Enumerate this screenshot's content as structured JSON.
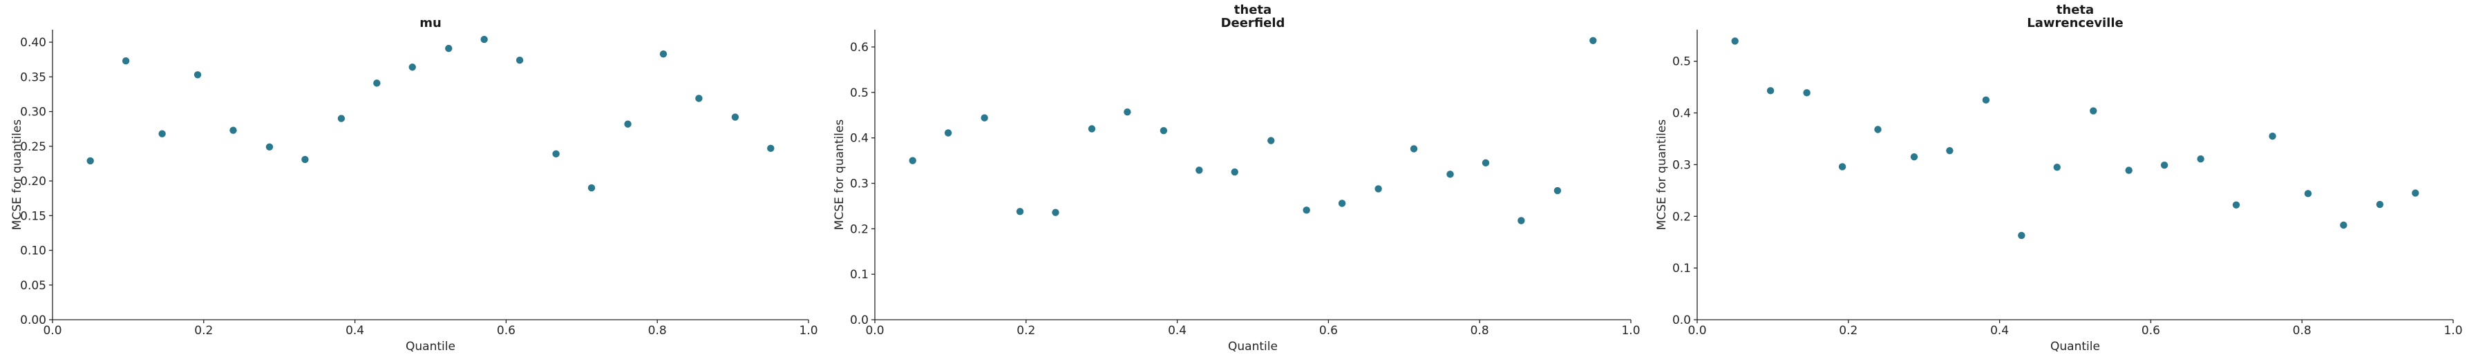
{
  "figure": {
    "background": "#ffffff",
    "colors": {
      "points": "#2a788e",
      "axis": "#262626",
      "tick_labels": "#262626",
      "axis_labels": "#262626",
      "title": "#1a1a1a"
    }
  },
  "chart_data": [
    {
      "type": "scatter",
      "title": "mu",
      "xlabel": "Quantile",
      "ylabel": "MCSE for quantiles",
      "x": [
        0.05,
        0.097,
        0.145,
        0.192,
        0.239,
        0.287,
        0.334,
        0.382,
        0.429,
        0.476,
        0.524,
        0.571,
        0.618,
        0.666,
        0.713,
        0.761,
        0.808,
        0.855,
        0.903,
        0.95
      ],
      "y": [
        0.229,
        0.373,
        0.268,
        0.353,
        0.273,
        0.249,
        0.231,
        0.29,
        0.341,
        0.364,
        0.391,
        0.404,
        0.374,
        0.239,
        0.19,
        0.282,
        0.383,
        0.319,
        0.292,
        0.247
      ],
      "xlim": [
        0,
        1
      ],
      "ylim": [
        0,
        0.418
      ],
      "grid": false,
      "legend": null,
      "xticks": {
        "values": [
          0.0,
          0.2,
          0.4,
          0.6,
          0.8,
          1.0
        ],
        "labels": [
          "0.0",
          "0.2",
          "0.4",
          "0.6",
          "0.8",
          "1.0"
        ]
      },
      "yticks": {
        "values": [
          0.0,
          0.05,
          0.1,
          0.15,
          0.2,
          0.25,
          0.3,
          0.35,
          0.4
        ],
        "labels": [
          "0.00",
          "0.05",
          "0.10",
          "0.15",
          "0.20",
          "0.25",
          "0.30",
          "0.35",
          "0.40"
        ]
      }
    },
    {
      "type": "scatter",
      "title": "theta\nDeerfield",
      "xlabel": "Quantile",
      "ylabel": "MCSE for quantiles",
      "x": [
        0.05,
        0.097,
        0.145,
        0.192,
        0.239,
        0.287,
        0.334,
        0.382,
        0.429,
        0.476,
        0.524,
        0.571,
        0.618,
        0.666,
        0.713,
        0.761,
        0.808,
        0.855,
        0.903,
        0.95
      ],
      "y": [
        0.35,
        0.411,
        0.444,
        0.238,
        0.236,
        0.42,
        0.457,
        0.416,
        0.329,
        0.325,
        0.394,
        0.241,
        0.256,
        0.288,
        0.376,
        0.32,
        0.345,
        0.218,
        0.284,
        0.614
      ],
      "xlim": [
        0,
        1
      ],
      "ylim": [
        0,
        0.638
      ],
      "grid": false,
      "legend": null,
      "xticks": {
        "values": [
          0.0,
          0.2,
          0.4,
          0.6,
          0.8,
          1.0
        ],
        "labels": [
          "0.0",
          "0.2",
          "0.4",
          "0.6",
          "0.8",
          "1.0"
        ]
      },
      "yticks": {
        "values": [
          0.0,
          0.1,
          0.2,
          0.3,
          0.4,
          0.5,
          0.6
        ],
        "labels": [
          "0.0",
          "0.1",
          "0.2",
          "0.3",
          "0.4",
          "0.5",
          "0.6"
        ]
      }
    },
    {
      "type": "scatter",
      "title": "theta\nLawrenceville",
      "xlabel": "Quantile",
      "ylabel": "MCSE for quantiles",
      "x": [
        0.05,
        0.097,
        0.145,
        0.192,
        0.239,
        0.287,
        0.334,
        0.382,
        0.429,
        0.476,
        0.524,
        0.571,
        0.618,
        0.666,
        0.713,
        0.761,
        0.808,
        0.855,
        0.903,
        0.95
      ],
      "y": [
        0.539,
        0.443,
        0.439,
        0.296,
        0.368,
        0.315,
        0.327,
        0.425,
        0.163,
        0.295,
        0.404,
        0.289,
        0.299,
        0.311,
        0.222,
        0.355,
        0.244,
        0.183,
        0.223,
        0.245
      ],
      "xlim": [
        0,
        1
      ],
      "ylim": [
        0,
        0.561
      ],
      "grid": false,
      "legend": null,
      "xticks": {
        "values": [
          0.0,
          0.2,
          0.4,
          0.6,
          0.8,
          1.0
        ],
        "labels": [
          "0.0",
          "0.2",
          "0.4",
          "0.6",
          "0.8",
          "1.0"
        ]
      },
      "yticks": {
        "values": [
          0.0,
          0.1,
          0.2,
          0.3,
          0.4,
          0.5
        ],
        "labels": [
          "0.0",
          "0.1",
          "0.2",
          "0.3",
          "0.4",
          "0.5"
        ]
      }
    }
  ]
}
